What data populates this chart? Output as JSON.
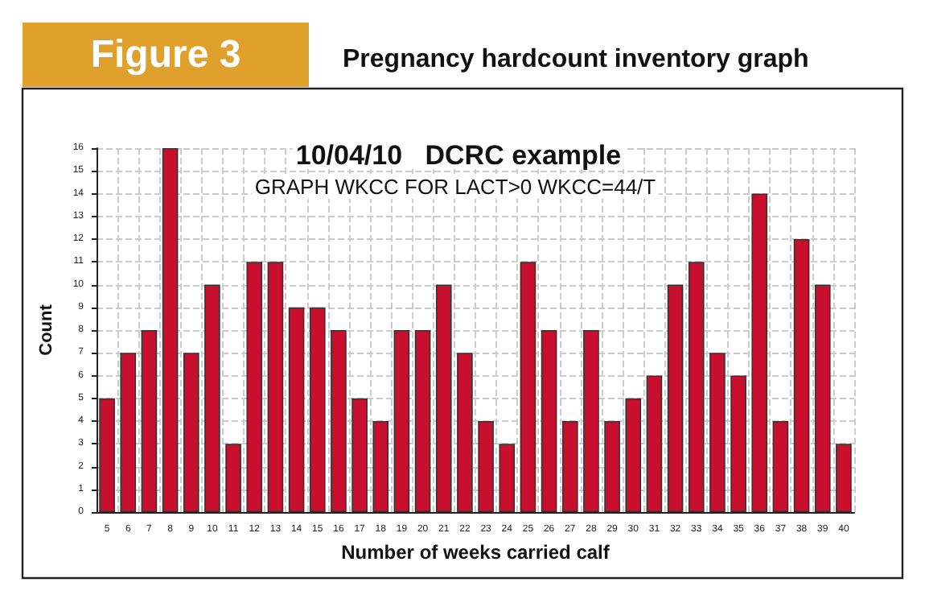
{
  "chart_data": {
    "type": "bar",
    "title": "Pregnancy hardcount inventory graph",
    "subtitle": "10/04/10   DCRC example",
    "annotations": [
      "Figure 3",
      "GRAPH WKCC FOR LACT>0 WKCC=44/T"
    ],
    "xlabel": "Number of weeks carried calf",
    "ylabel": "Count",
    "categories": [
      "5",
      "6",
      "7",
      "8",
      "9",
      "10",
      "11",
      "12",
      "13",
      "14",
      "15",
      "16",
      "17",
      "18",
      "19",
      "20",
      "21",
      "22",
      "23",
      "24",
      "25",
      "26",
      "27",
      "28",
      "29",
      "30",
      "31",
      "32",
      "33",
      "34",
      "35",
      "36",
      "37",
      "38",
      "39",
      "40"
    ],
    "values": [
      5,
      7,
      8,
      16,
      7,
      10,
      3,
      11,
      11,
      9,
      9,
      8,
      5,
      4,
      8,
      8,
      10,
      7,
      4,
      3,
      11,
      8,
      4,
      8,
      4,
      5,
      6,
      10,
      11,
      7,
      6,
      14,
      4,
      12,
      10,
      3
    ],
    "color": "#c8102e",
    "ylim": [
      0,
      16
    ],
    "yticks": [
      0,
      1,
      2,
      3,
      4,
      5,
      6,
      7,
      8,
      9,
      10,
      11,
      12,
      13,
      14,
      15,
      16
    ],
    "grid": true
  }
}
